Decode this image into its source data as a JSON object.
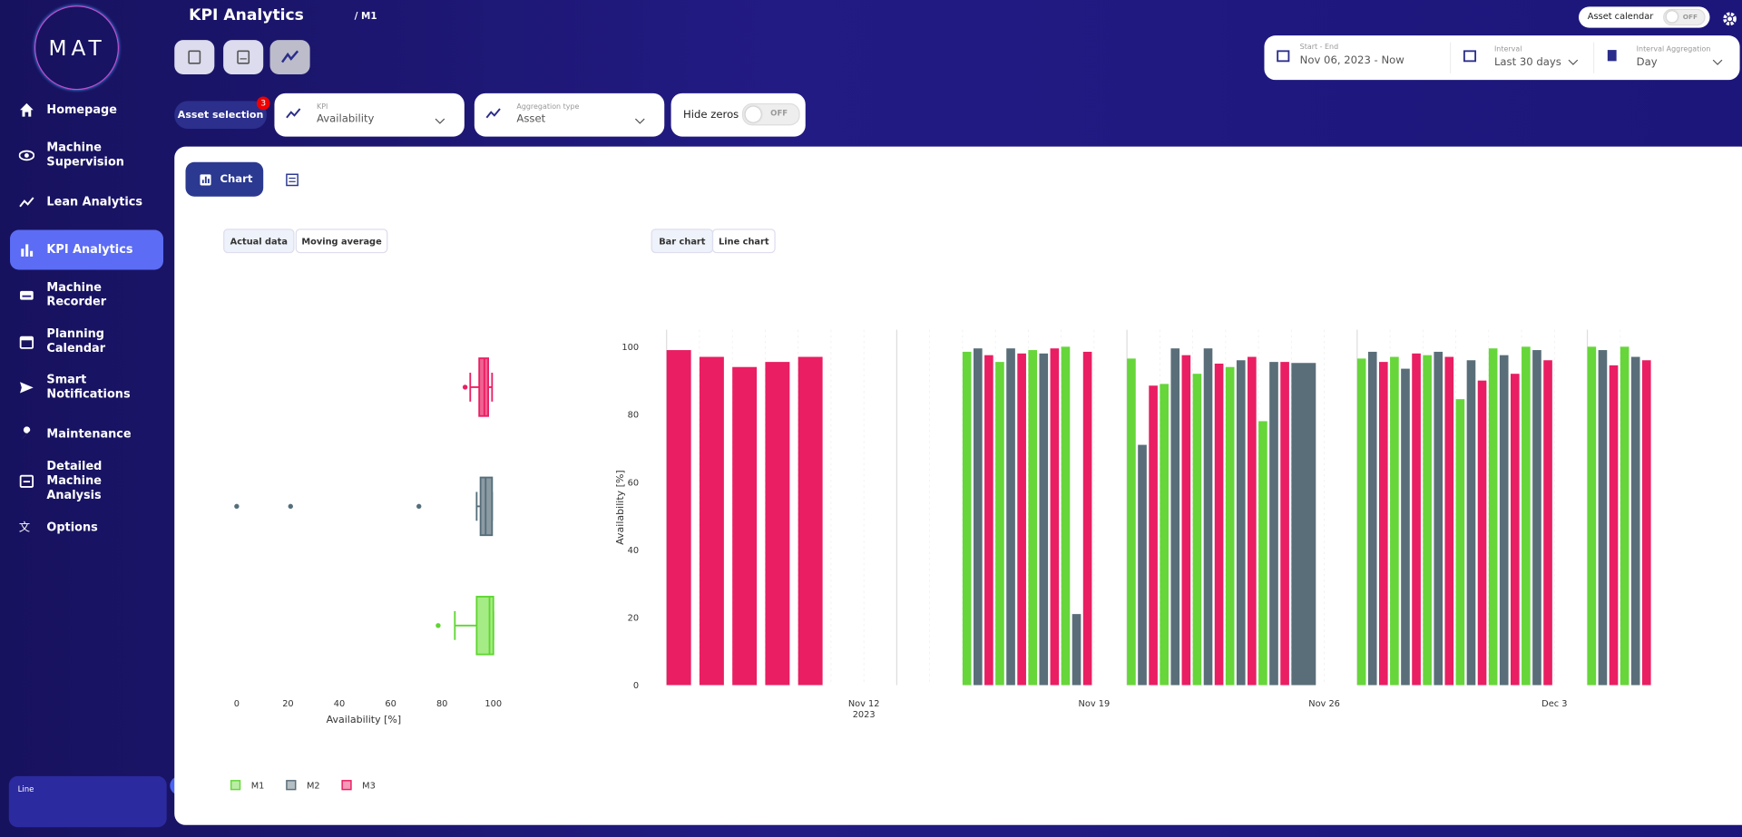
{
  "sidebar": {
    "logo": "MAT",
    "nav": [
      {
        "label": "Homepage"
      },
      {
        "label": "Machine Supervision"
      },
      {
        "label": "Lean Analytics"
      },
      {
        "label": "KPI Analytics",
        "active": true
      },
      {
        "label": "Machine Recorder"
      },
      {
        "label": "Planning Calendar"
      },
      {
        "label": "Smart Notifications"
      },
      {
        "label": "Maintenance"
      },
      {
        "label": "Detailed Machine Analysis"
      },
      {
        "label": "Options"
      }
    ],
    "footer_label": "Line"
  },
  "header": {
    "title": "KPI Analytics",
    "breadcrumb": "/ M1",
    "asset_calendar": "Asset calendar",
    "asset_calendar_toggle": "OFF"
  },
  "date_controls": [
    {
      "label": "Start - End",
      "value": "Nov 06, 2023 - Now"
    },
    {
      "label": "Interval",
      "value": "Last 30 days"
    },
    {
      "label": "Interval Aggregation",
      "value": "Day"
    }
  ],
  "filters": {
    "asset_selection": "Asset selection",
    "asset_count": "3",
    "kpi_label": "KPI",
    "kpi_value": "Availability",
    "aggregation_label": "Aggregation type",
    "aggregation_value": "Asset",
    "hide_zeros": "Hide zeros",
    "hide_zeros_toggle": "OFF"
  },
  "view_tabs": {
    "chart": "Chart"
  },
  "chart_toggles": {
    "left": [
      "Actual data",
      "Moving average"
    ],
    "right": [
      "Bar chart",
      "Line chart"
    ]
  },
  "chart_data": [
    {
      "type": "box",
      "xlabel": "Availability [%]",
      "xlim": [
        -4,
        103
      ],
      "xticks": [
        0,
        20,
        40,
        60,
        80,
        100
      ],
      "series": [
        {
          "color": "#5fd630",
          "fill": "#a6ec86",
          "whisker_low": 85,
          "q1": 93.5,
          "median": 98.5,
          "q3": 100,
          "whisker_high": 100,
          "outliers": [
            78.5
          ]
        },
        {
          "color": "#546e7a",
          "fill": "#8c9aa3",
          "whisker_low": 93.5,
          "q1": 95,
          "median": 97,
          "q3": 99.5,
          "whisker_high": 99.5,
          "outliers": [
            0,
            21,
            71
          ]
        },
        {
          "color": "#e91e63",
          "fill": "#f06292",
          "whisker_low": 91,
          "q1": 94.5,
          "median": 96.5,
          "q3": 98,
          "whisker_high": 99.5,
          "outliers": [
            89
          ]
        }
      ]
    },
    {
      "type": "bar",
      "ylabel": "Availability [%]",
      "ylim": [
        0,
        105
      ],
      "yticks": [
        0,
        20,
        40,
        60,
        80,
        100
      ],
      "categories": [
        null,
        null,
        null,
        null,
        null,
        null,
        "Nov 12",
        null,
        null,
        null,
        null,
        null,
        null,
        "Nov 19",
        null,
        null,
        null,
        null,
        null,
        null,
        "Nov 26",
        null,
        null,
        null,
        null,
        null,
        null,
        "Dec 3",
        null,
        null
      ],
      "x_sublabel": "2023",
      "legend": "bottom-left",
      "series": [
        {
          "name": "M1",
          "color": "#66d63a",
          "values": [
            null,
            null,
            null,
            null,
            null,
            null,
            null,
            null,
            null,
            98.5,
            95.5,
            99,
            100,
            null,
            96.5,
            89,
            92,
            94,
            78,
            null,
            null,
            96.5,
            97,
            97.5,
            84.5,
            99.5,
            100,
            null,
            100,
            100
          ]
        },
        {
          "name": "M2",
          "color": "#596e79",
          "values": [
            null,
            null,
            null,
            null,
            null,
            null,
            null,
            null,
            null,
            99.5,
            99.5,
            98,
            21,
            null,
            71,
            99.5,
            99.5,
            96,
            95.5,
            95.2,
            null,
            98.5,
            93.5,
            98.5,
            96,
            97.5,
            99,
            null,
            99,
            97
          ]
        },
        {
          "name": "M3",
          "color": "#e91e63",
          "values": [
            99,
            97,
            94,
            95.5,
            97,
            null,
            null,
            null,
            null,
            97.5,
            98,
            99.5,
            98.5,
            null,
            88.5,
            97.5,
            95,
            97,
            95.5,
            null,
            null,
            95.5,
            98,
            97,
            90,
            92,
            96,
            null,
            94.5,
            96
          ]
        }
      ]
    }
  ]
}
